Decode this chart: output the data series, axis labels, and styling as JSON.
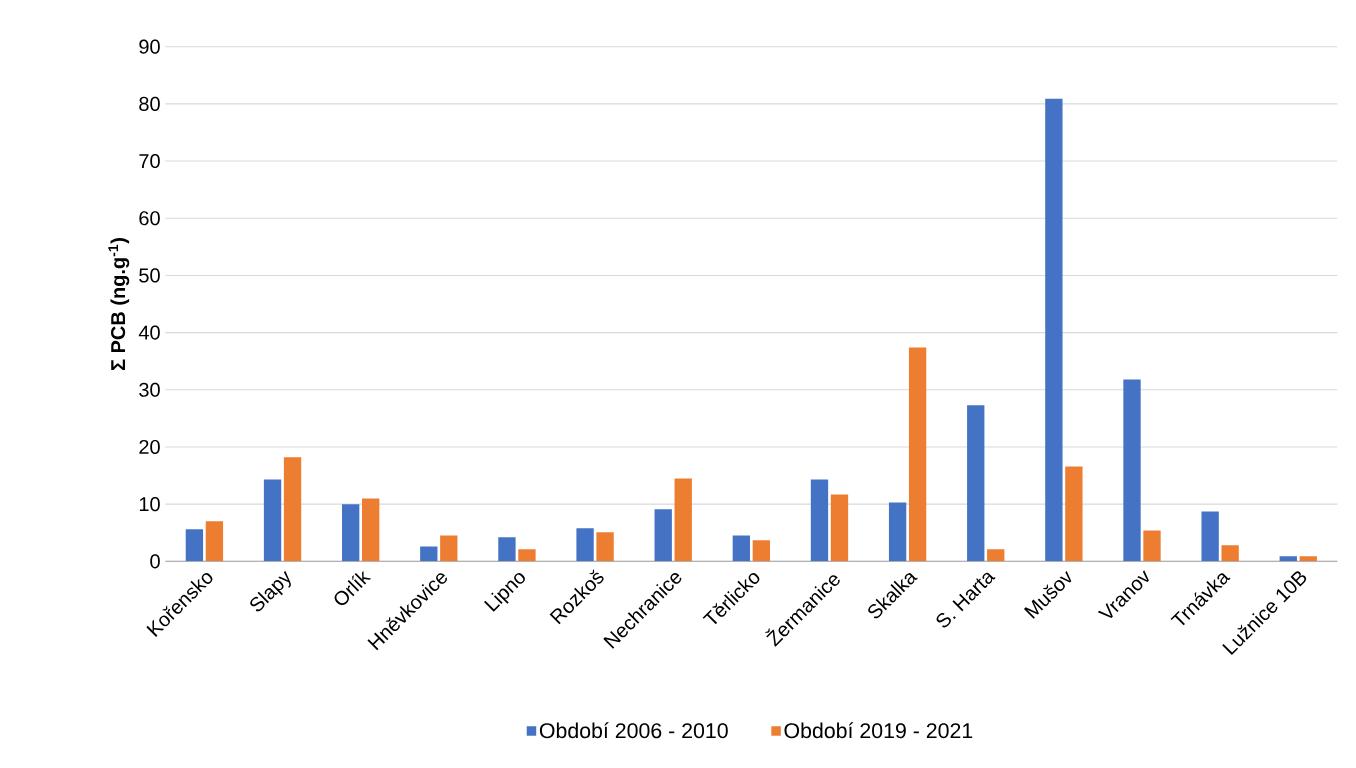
{
  "chart_data": {
    "type": "bar",
    "ylabel": "Σ PCB  (ng.g$^{-1}$)",
    "categories": [
      "Kořensko",
      "Slapy",
      "Orlík",
      "Hněvkovice",
      "Lipno",
      "Rozkoš",
      "Nechranice",
      "Těrlicko",
      "Žermanice",
      "Skalka",
      "S. Harta",
      "Mušov",
      "Vranov",
      "Trnávka",
      "Lužnice 10B"
    ],
    "series": [
      {
        "name": "Období 2006 - 2010",
        "color": "#4472c4",
        "values": [
          5.6,
          14.3,
          10.0,
          2.6,
          4.2,
          5.8,
          9.1,
          4.5,
          14.3,
          10.3,
          27.3,
          80.9,
          31.8,
          8.7,
          0.9
        ]
      },
      {
        "name": "Období 2019 - 2021",
        "color": "#ed7d31",
        "values": [
          7.0,
          18.2,
          11.0,
          4.5,
          2.1,
          5.1,
          14.5,
          3.7,
          11.7,
          37.4,
          2.1,
          16.6,
          5.4,
          2.8,
          0.9
        ]
      }
    ],
    "ylim": [
      0,
      90
    ],
    "yticks": [
      0,
      10,
      20,
      30,
      40,
      50,
      60,
      70,
      80,
      90
    ],
    "grid": "y",
    "legend": "bottom"
  }
}
